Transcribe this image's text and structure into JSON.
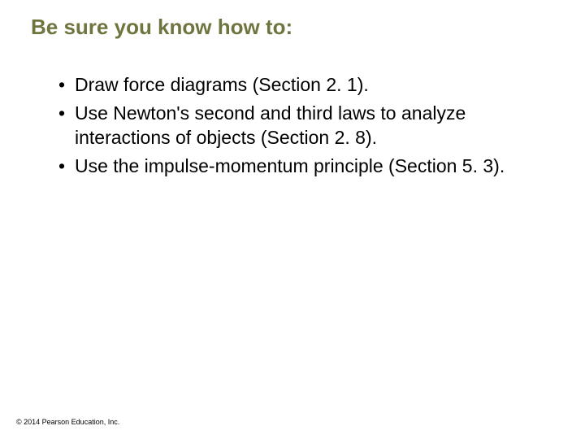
{
  "title": {
    "text": "Be sure you know how to:",
    "color": "#70743f",
    "fontsize": 26
  },
  "bullets": {
    "marker": "•",
    "marker_color": "#000000",
    "text_color": "#000000",
    "fontsize": 23,
    "items": [
      "Draw force diagrams (Section 2. 1).",
      "Use Newton's second and third laws to analyze interactions of objects (Section 2. 8).",
      "Use the impulse-momentum principle (Section 5. 3)."
    ]
  },
  "copyright": {
    "text": "© 2014 Pearson Education, Inc.",
    "color": "#000000",
    "fontsize": 9
  },
  "background_color": "#ffffff"
}
